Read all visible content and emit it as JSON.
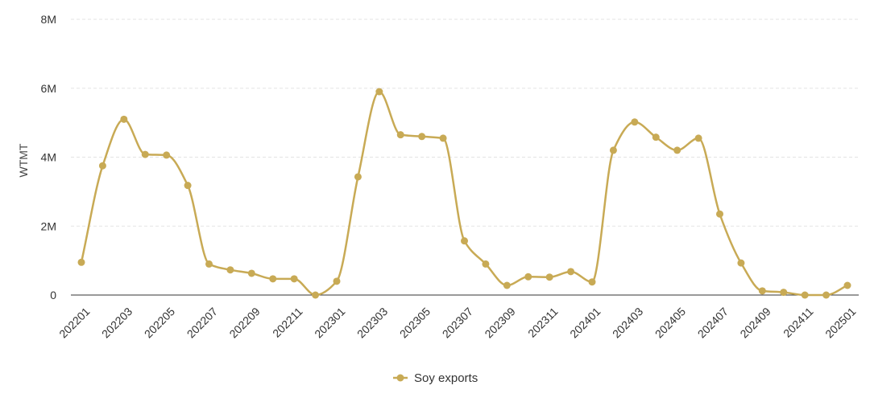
{
  "chart_data": {
    "type": "line",
    "title": "",
    "xlabel": "",
    "ylabel": "WTMT",
    "ylim": [
      0,
      8000000
    ],
    "y_ticks": [
      {
        "value": 0,
        "label": "0"
      },
      {
        "value": 2000000,
        "label": "2M"
      },
      {
        "value": 4000000,
        "label": "4M"
      },
      {
        "value": 6000000,
        "label": "6M"
      },
      {
        "value": 8000000,
        "label": "8M"
      }
    ],
    "grid": "horizontal dashed",
    "legend": "bottom-center",
    "x": [
      "202201",
      "202202",
      "202203",
      "202204",
      "202205",
      "202206",
      "202207",
      "202208",
      "202209",
      "202210",
      "202211",
      "202212",
      "202301",
      "202302",
      "202303",
      "202304",
      "202305",
      "202306",
      "202307",
      "202308",
      "202309",
      "202310",
      "202311",
      "202312",
      "202401",
      "202402",
      "202403",
      "202404",
      "202405",
      "202406",
      "202407",
      "202408",
      "202409",
      "202410",
      "202411",
      "202412",
      "202501"
    ],
    "x_tick_labels": [
      "202201",
      "202203",
      "202205",
      "202207",
      "202209",
      "202211",
      "202301",
      "202303",
      "202305",
      "202307",
      "202309",
      "202311",
      "202401",
      "202403",
      "202405",
      "202407",
      "202409",
      "202411",
      "202501"
    ],
    "series": [
      {
        "name": "Soy exports",
        "color": "#c8aa55",
        "values": [
          950000,
          3750000,
          5100000,
          4080000,
          4060000,
          3180000,
          900000,
          730000,
          630000,
          470000,
          470000,
          0,
          400000,
          3430000,
          5900000,
          4650000,
          4600000,
          4550000,
          1570000,
          900000,
          280000,
          530000,
          520000,
          680000,
          380000,
          4200000,
          5020000,
          4580000,
          4200000,
          4550000,
          2350000,
          930000,
          120000,
          80000,
          0,
          0,
          280000
        ]
      }
    ]
  }
}
